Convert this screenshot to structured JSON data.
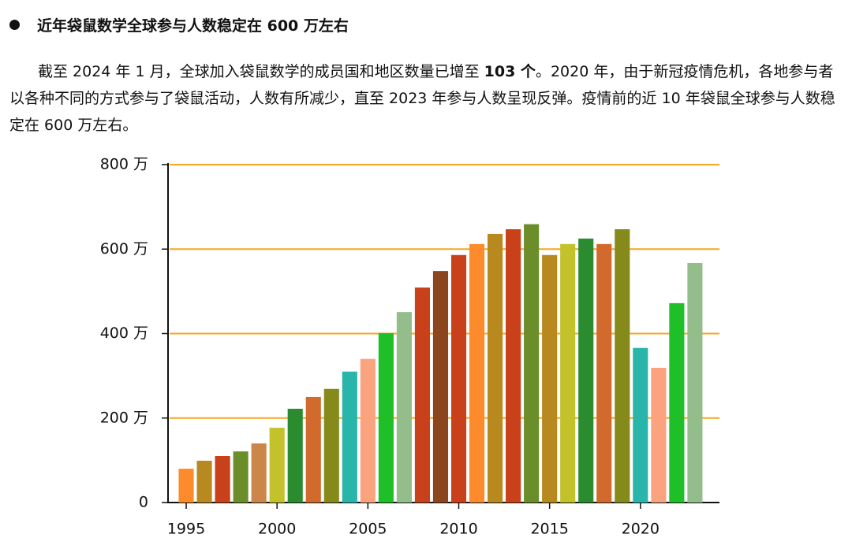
{
  "heading": "近年袋鼠数学全球参与人数稳定在 600 万左右",
  "paragraph": [
    "截至 2024 年 1 月，全球加入袋鼠数学的成员国和地区数量已增至 ",
    "103 个",
    "。2020 年，由于新冠疫情危机，各地参与者以各种不同的方式参与了袋鼠活动，人数有所减少，直至 2023 年参与人数呈现反弹。疫情前的近 10 年袋鼠全球参与人数稳定在 600 万左右。"
  ],
  "chart_data": {
    "type": "bar",
    "x": [
      1995,
      1996,
      1997,
      1998,
      1999,
      2000,
      2001,
      2002,
      2003,
      2004,
      2005,
      2006,
      2007,
      2008,
      2009,
      2010,
      2011,
      2012,
      2013,
      2014,
      2015,
      2016,
      2017,
      2018,
      2019,
      2020,
      2021,
      2022,
      2023
    ],
    "values": [
      80,
      99,
      110,
      121,
      140,
      177,
      222,
      250,
      269,
      310,
      340,
      401,
      451,
      509,
      548,
      586,
      612,
      636,
      647,
      659,
      586,
      612,
      625,
      612,
      647,
      366,
      319,
      472,
      567
    ],
    "colors": [
      "#fd8a2b",
      "#b8891f",
      "#c9411a",
      "#6b8e2a",
      "#cd8649",
      "#c3c22b",
      "#2a8c2e",
      "#d36a2d",
      "#868a1a",
      "#2ab5ab",
      "#fba37f",
      "#1fbf28",
      "#94bd8c",
      "#c9411a",
      "#8b461d",
      "#c9411a",
      "#fd8a2b",
      "#b8891f",
      "#c9411a",
      "#6b8e2a",
      "#b8891f",
      "#c3c22b",
      "#2a8c2e",
      "#d36a2d",
      "#868a1a",
      "#2ab5ab",
      "#fba37f",
      "#1fbf28",
      "#94bd8c"
    ],
    "xlim": [
      1994,
      2024.35
    ],
    "xticks": [
      1995,
      2000,
      2005,
      2010,
      2015,
      2020
    ],
    "ylim": [
      0,
      800
    ],
    "yticks": [
      0,
      {
        "value": 200,
        "label": "200 万"
      },
      {
        "value": 400,
        "label": "400 万"
      },
      {
        "value": 600,
        "label": "600 万"
      },
      {
        "value": 800,
        "label": "800 万"
      }
    ],
    "grid": true,
    "grid_color": "#f5a623"
  }
}
